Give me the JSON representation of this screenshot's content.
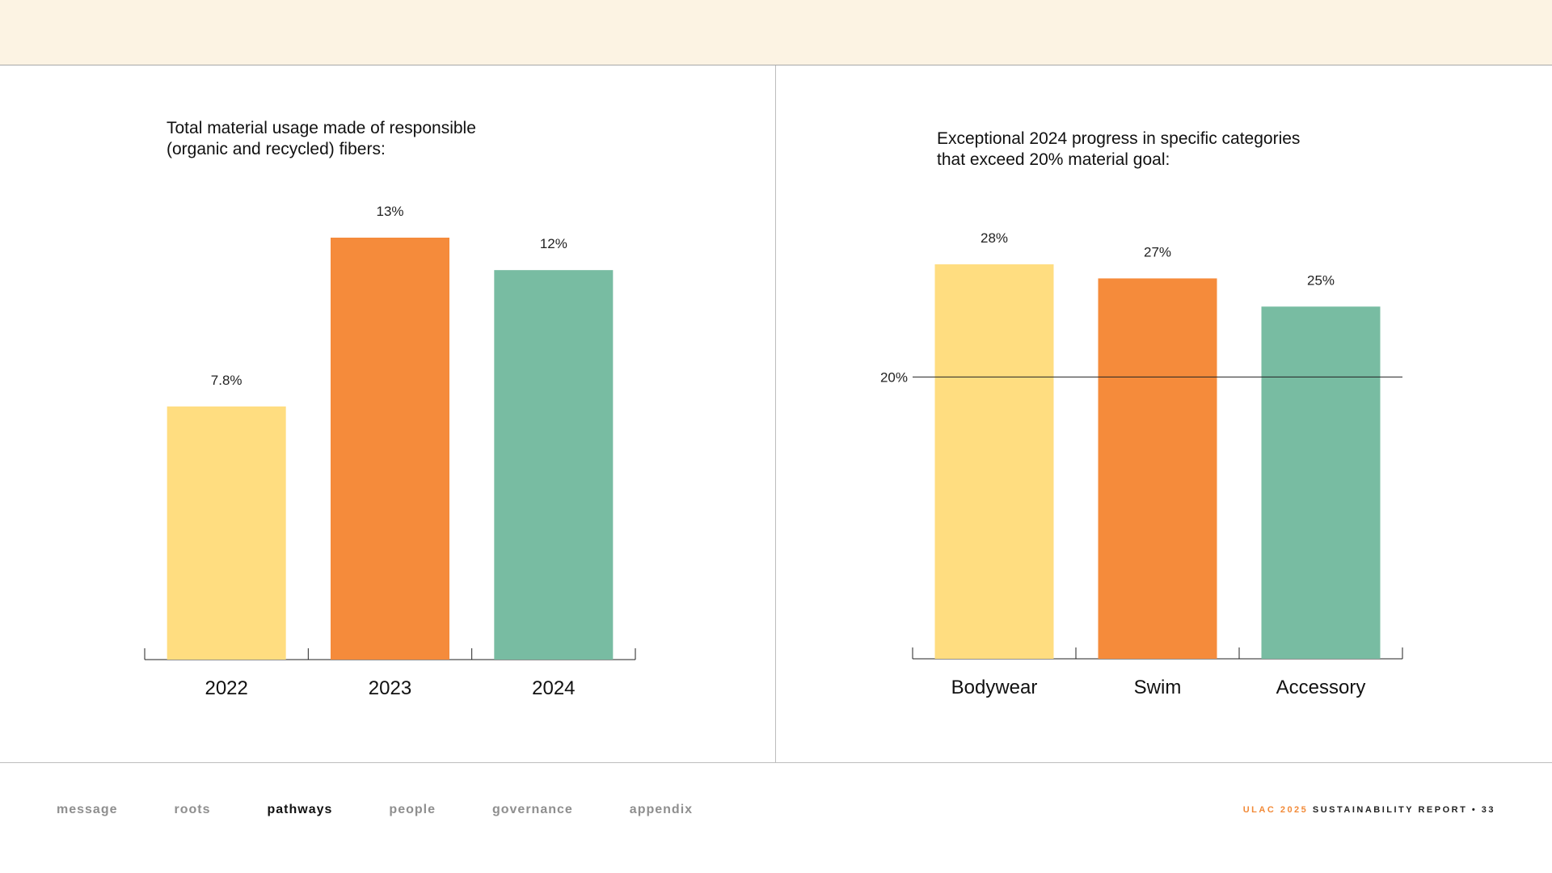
{
  "colors": {
    "yellow": "#ffdd80",
    "orange": "#f58b3b",
    "teal": "#78bca2",
    "header_band": "#fcf3e3"
  },
  "chart_data": [
    {
      "type": "bar",
      "title_lines": [
        "Total material usage made of responsible",
        "(organic and recycled) fibers:"
      ],
      "categories": [
        "2022",
        "2023",
        "2024"
      ],
      "values": [
        7.8,
        13,
        12
      ],
      "value_labels": [
        "7.8%",
        "13%",
        "12%"
      ],
      "bar_colors": [
        "#ffdd80",
        "#f58b3b",
        "#78bca2"
      ],
      "ylim": [
        0,
        13
      ],
      "grid": false,
      "xlabel": "",
      "ylabel": ""
    },
    {
      "type": "bar",
      "title_lines": [
        "Exceptional 2024 progress in specific categories",
        "that exceed 20% material goal:"
      ],
      "categories": [
        "Bodywear",
        "Swim",
        "Accessory"
      ],
      "values": [
        28,
        27,
        25
      ],
      "value_labels": [
        "28%",
        "27%",
        "25%"
      ],
      "bar_colors": [
        "#ffdd80",
        "#f58b3b",
        "#78bca2"
      ],
      "ylim": [
        0,
        28
      ],
      "grid": false,
      "reference_line": {
        "value": 20,
        "label": "20%"
      },
      "xlabel": "",
      "ylabel": ""
    }
  ],
  "footer": {
    "nav": [
      {
        "label": "message",
        "active": false
      },
      {
        "label": "roots",
        "active": false
      },
      {
        "label": "pathways",
        "active": true
      },
      {
        "label": "people",
        "active": false
      },
      {
        "label": "governance",
        "active": false
      },
      {
        "label": "appendix",
        "active": false
      }
    ],
    "brand": "ULAC 2025",
    "report_text": "SUSTAINABILITY REPORT • 33"
  }
}
